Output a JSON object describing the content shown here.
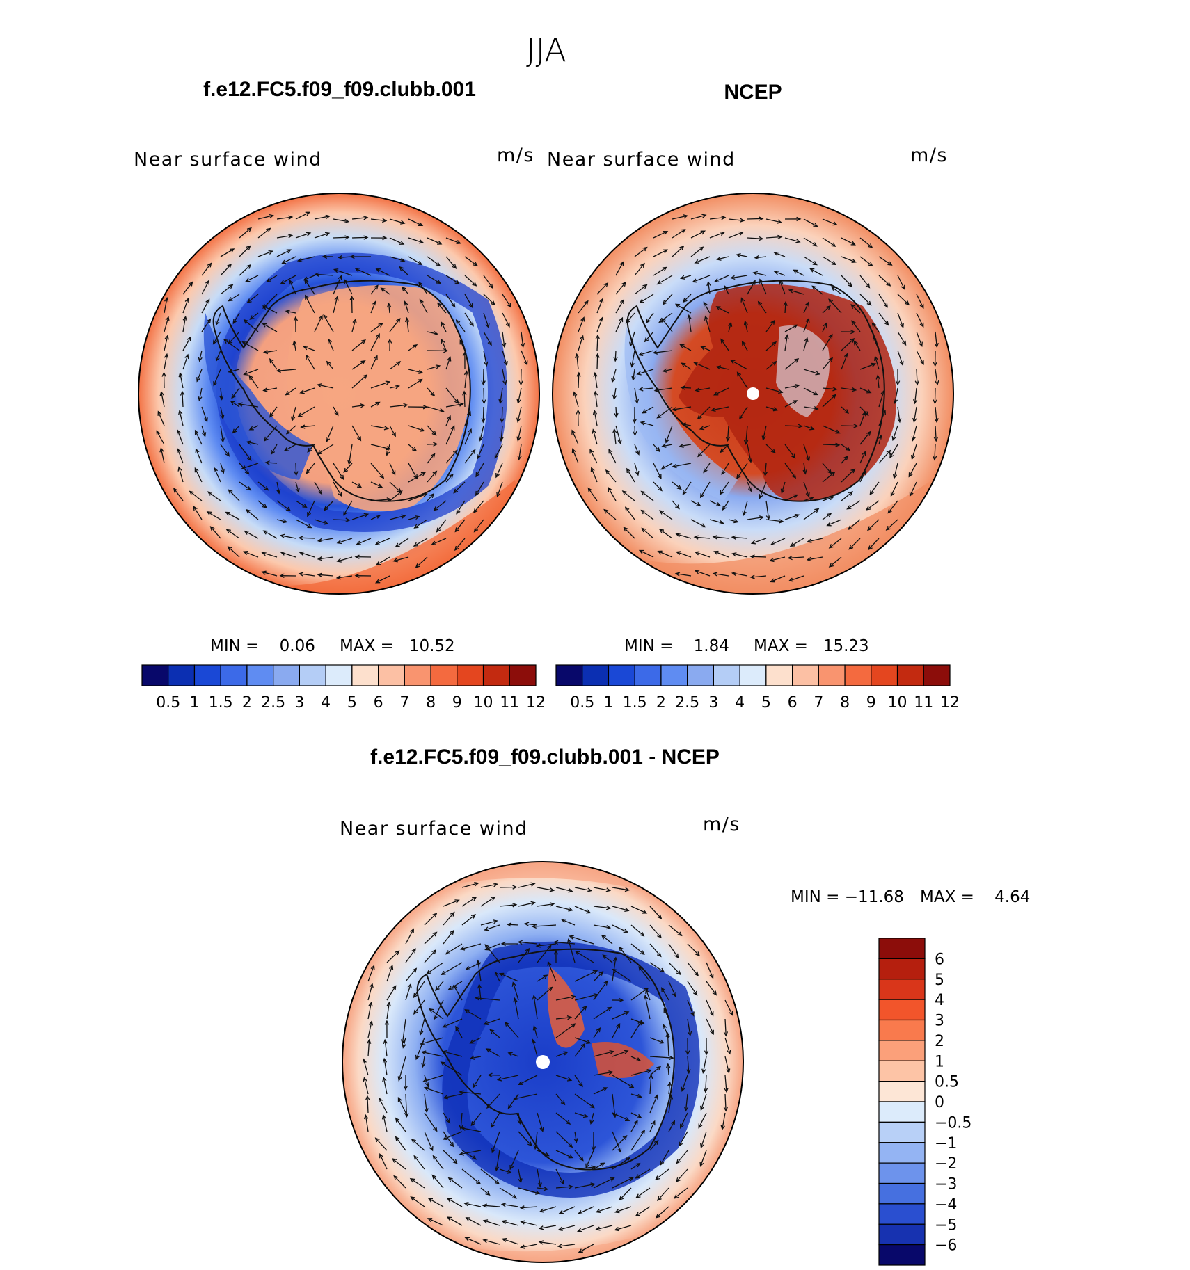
{
  "figure": {
    "season_title": "JJA"
  },
  "chart_data": [
    {
      "type": "heatmap",
      "panel": "model",
      "title": "f.e12.FC5.f09_f09.clubb.001",
      "left_label": "Near surface wind",
      "units": "m/s",
      "projection": "south polar stereographic",
      "field": "near surface wind speed (filled contours) with wind vectors",
      "min_text": "MIN =    0.06",
      "max_text": "MAX =   10.52",
      "min": 0.06,
      "max": 10.52,
      "colorbar": {
        "orientation": "horizontal",
        "ticks": [
          "0.5",
          "1",
          "1.5",
          "2",
          "2.5",
          "3",
          "4",
          "5",
          "6",
          "7",
          "8",
          "9",
          "10",
          "11",
          "12"
        ],
        "colors": [
          "#08086a",
          "#0b2fb2",
          "#1a48d6",
          "#3c6ae8",
          "#5f8cf2",
          "#8aaaf0",
          "#b4cdf6",
          "#dcebfb",
          "#fde0cd",
          "#fcc0a4",
          "#f9946f",
          "#f46a3f",
          "#e4461f",
          "#c32a10",
          "#8c0d0a"
        ]
      }
    },
    {
      "type": "heatmap",
      "panel": "obs",
      "title": "NCEP",
      "left_label": "Near surface wind",
      "units": "m/s",
      "projection": "south polar stereographic",
      "field": "near surface wind speed (filled contours) with wind vectors",
      "min_text": "MIN =    1.84",
      "max_text": "MAX =   15.23",
      "min": 1.84,
      "max": 15.23,
      "colorbar": {
        "orientation": "horizontal",
        "ticks": [
          "0.5",
          "1",
          "1.5",
          "2",
          "2.5",
          "3",
          "4",
          "5",
          "6",
          "7",
          "8",
          "9",
          "10",
          "11",
          "12"
        ],
        "colors": [
          "#08086a",
          "#0b2fb2",
          "#1a48d6",
          "#3c6ae8",
          "#5f8cf2",
          "#8aaaf0",
          "#b4cdf6",
          "#dcebfb",
          "#fde0cd",
          "#fcc0a4",
          "#f9946f",
          "#f46a3f",
          "#e4461f",
          "#c32a10",
          "#8c0d0a"
        ]
      }
    },
    {
      "type": "heatmap",
      "panel": "difference",
      "title": "f.e12.FC5.f09_f09.clubb.001 - NCEP",
      "left_label": "Near surface wind",
      "units": "m/s",
      "projection": "south polar stereographic",
      "field": "near surface wind speed difference (filled contours) with difference vectors",
      "min_text": "MIN = −11.68",
      "max_text": "MAX =    4.64",
      "min": -11.68,
      "max": 4.64,
      "colorbar": {
        "orientation": "vertical",
        "ticks": [
          "6",
          "5",
          "4",
          "3",
          "2",
          "1",
          "0.5",
          "0",
          "−0.5",
          "−1",
          "−2",
          "−3",
          "−4",
          "−5",
          "−6"
        ],
        "colors": [
          "#8c0d0a",
          "#b51f0e",
          "#d9361a",
          "#f2552b",
          "#f97a4d",
          "#fba07a",
          "#fdc4a6",
          "#fde6d6",
          "#dcebfb",
          "#b8d0f7",
          "#94b4f3",
          "#6d93ec",
          "#4670e0",
          "#2a4fd0",
          "#1732b0",
          "#08086a"
        ]
      }
    }
  ]
}
